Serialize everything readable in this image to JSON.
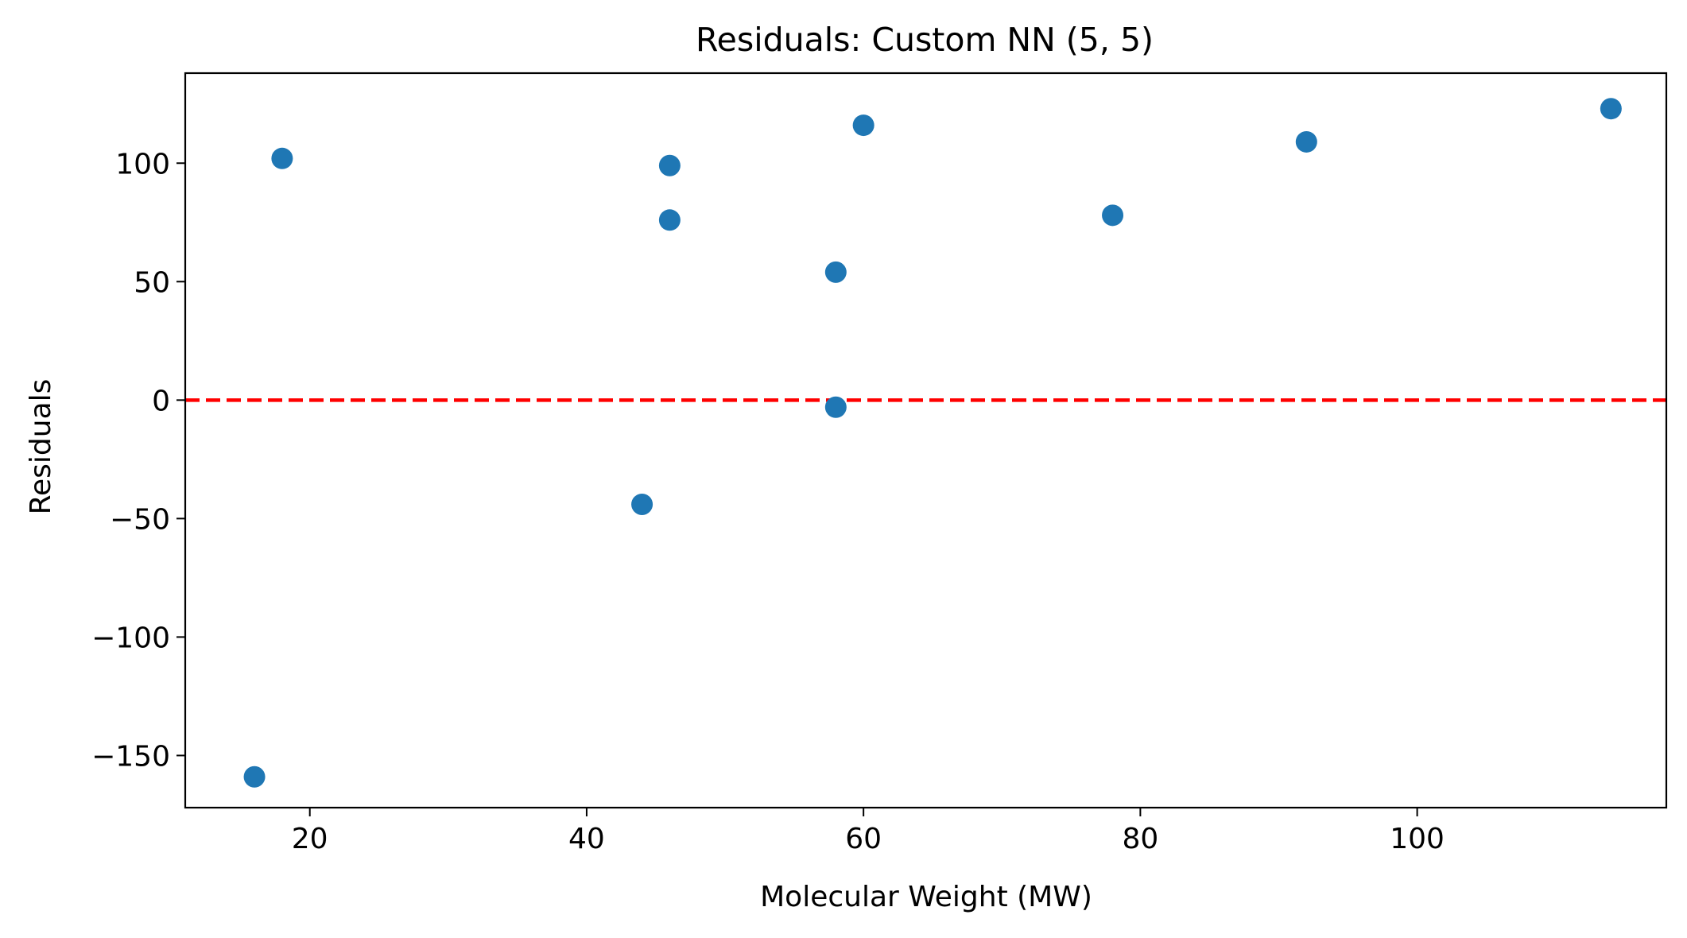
{
  "chart_data": {
    "type": "scatter",
    "title": "Residuals: Custom NN (5, 5)",
    "xlabel": "Molecular Weight (MW)",
    "ylabel": "Residuals",
    "xlim": [
      11,
      118
    ],
    "ylim": [
      -172,
      138
    ],
    "xticks": [
      20,
      40,
      60,
      80,
      100
    ],
    "yticks": [
      -150,
      -100,
      -50,
      0,
      50,
      100
    ],
    "xtick_labels": [
      "20",
      "40",
      "60",
      "80",
      "100"
    ],
    "ytick_labels": [
      "−150",
      "−100",
      "−50",
      "0",
      "50",
      "100"
    ],
    "grid": false,
    "legend": "none",
    "reference_line": {
      "y": 0,
      "style": "dashed",
      "color": "#ff0000"
    },
    "marker_color": "#1f77b4",
    "points": [
      {
        "x": 16,
        "y": -159
      },
      {
        "x": 18,
        "y": 102
      },
      {
        "x": 44,
        "y": -44
      },
      {
        "x": 46,
        "y": 99
      },
      {
        "x": 46,
        "y": 76
      },
      {
        "x": 58,
        "y": 54
      },
      {
        "x": 58,
        "y": -3
      },
      {
        "x": 60,
        "y": 116
      },
      {
        "x": 78,
        "y": 78
      },
      {
        "x": 92,
        "y": 109
      },
      {
        "x": 114,
        "y": 123
      }
    ]
  }
}
